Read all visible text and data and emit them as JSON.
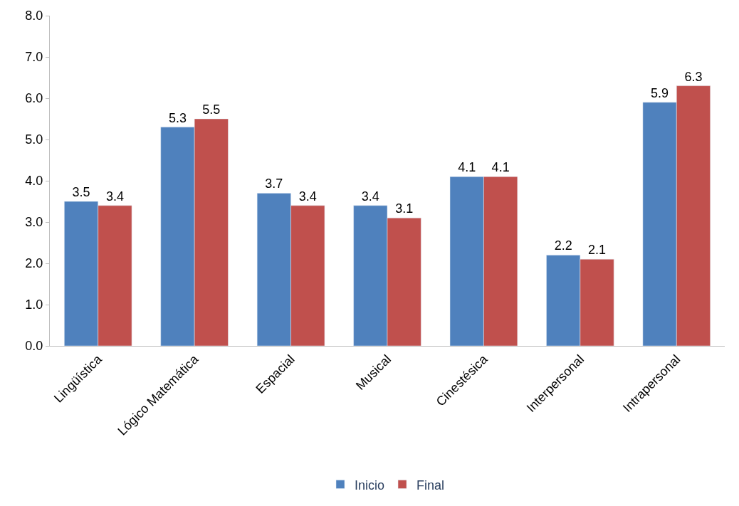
{
  "chart_data": {
    "type": "bar",
    "categories": [
      "Lingüística",
      "Lógico Matemática",
      "Espacial",
      "Musical",
      "Cinestésica",
      "Interpersonal",
      "Intrapersonal"
    ],
    "series": [
      {
        "name": "Inicio",
        "color": "#4f81bd",
        "values": [
          3.5,
          5.3,
          3.7,
          3.4,
          4.1,
          2.2,
          5.9
        ]
      },
      {
        "name": "Final",
        "color": "#c0504d",
        "values": [
          3.4,
          5.5,
          3.4,
          3.1,
          4.1,
          2.1,
          6.3
        ]
      }
    ],
    "ylim": [
      0,
      8
    ],
    "yticks": [
      {
        "value": 0,
        "label": "0.0"
      },
      {
        "value": 1,
        "label": "1.0"
      },
      {
        "value": 2,
        "label": "2.0"
      },
      {
        "value": 3,
        "label": "3.0"
      },
      {
        "value": 4,
        "label": "4.0"
      },
      {
        "value": 5,
        "label": "5.0"
      },
      {
        "value": 6,
        "label": "6.0"
      },
      {
        "value": 7,
        "label": "7.0"
      },
      {
        "value": 8,
        "label": "8.0"
      }
    ],
    "data_labels": true,
    "grid": false,
    "legend": "bottom"
  }
}
